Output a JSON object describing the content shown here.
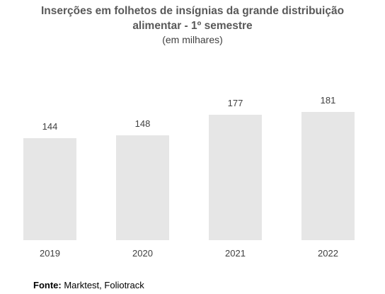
{
  "chart_data": {
    "type": "bar",
    "title_line1": "Inserções em folhetos de insígnias da grande distribuição",
    "title_line2": "alimentar - 1º semestre",
    "subtitle": "(em milhares)",
    "categories": [
      "2019",
      "2020",
      "2021",
      "2022"
    ],
    "values": [
      144,
      148,
      177,
      181
    ],
    "ylim": [
      0,
      200
    ],
    "grid": false,
    "legend": "none",
    "bar_color": "#e6e6e6",
    "xlabel": "",
    "ylabel": ""
  },
  "source": {
    "label": "Fonte:",
    "text": " Marktest, Foliotrack"
  }
}
